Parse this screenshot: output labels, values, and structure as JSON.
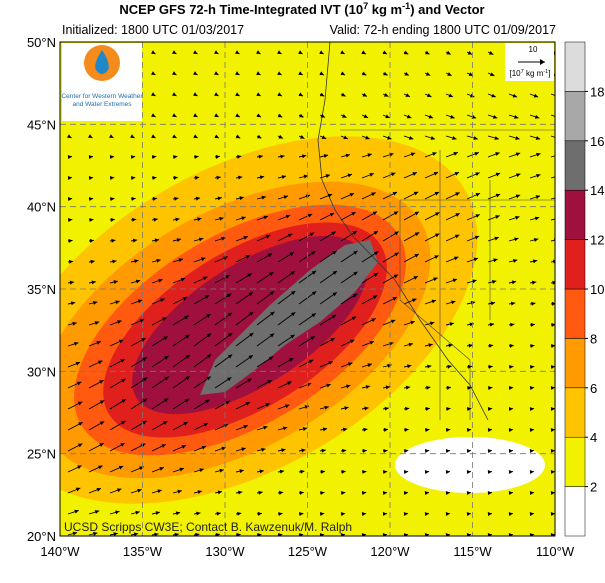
{
  "title": {
    "parts": [
      "NCEP GFS 72-h Time-Integrated IVT (10",
      "7",
      " kg m",
      "-1",
      ") and Vector"
    ]
  },
  "initialized": "Initialized: 1800 UTC 01/03/2017",
  "valid": "Valid: 72-h ending 1800 UTC 01/09/2017",
  "logo": {
    "line1": "Center for Western Weather",
    "line2": "and Water Extremes"
  },
  "vector_legend": {
    "magnitude": "10",
    "unit_parts": [
      "[10",
      "7",
      " kg m",
      "-1",
      "]"
    ]
  },
  "credit": "UCSD Scripps CW3E; Contact B. Kawzenuk/M. Ralph",
  "lat_labels": [
    "50°N",
    "45°N",
    "40°N",
    "35°N",
    "30°N",
    "25°N",
    "20°N"
  ],
  "lon_labels": [
    "140°W",
    "135°W",
    "130°W",
    "125°W",
    "120°W",
    "115°W",
    "110°W"
  ],
  "colorbar": {
    "ticks": [
      2,
      4,
      6,
      8,
      10,
      12,
      14,
      16,
      18
    ],
    "colors": [
      "#ffffff",
      "#f2f200",
      "#ffc400",
      "#ff9a00",
      "#ff5a10",
      "#e0201c",
      "#a0103e",
      "#6e6e6e",
      "#a8a8a8",
      "#dcdcdc"
    ]
  }
}
